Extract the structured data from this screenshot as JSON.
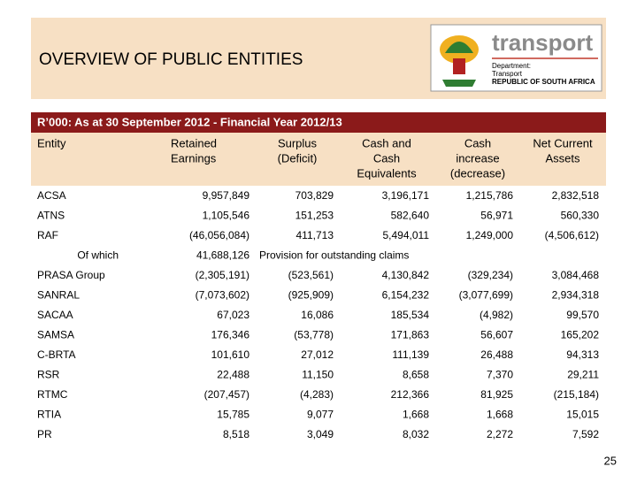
{
  "header": {
    "title": "OVERVIEW OF PUBLIC ENTITIES",
    "logo": {
      "name": "transport",
      "line1": "Department:",
      "line2": "Transport",
      "line3": "REPUBLIC OF SOUTH AFRICA"
    }
  },
  "banner": "R’000: As at 30 September 2012  - Financial Year 2012/13",
  "table": {
    "columns": [
      [
        "Entity"
      ],
      [
        "Retained",
        "Earnings"
      ],
      [
        "Surplus",
        "(Deficit)"
      ],
      [
        "Cash and",
        "Cash",
        "Equivalents"
      ],
      [
        "Cash",
        "increase",
        "(decrease)"
      ],
      [
        "Net Current",
        "Assets"
      ]
    ],
    "rows": [
      [
        "ACSA",
        "9,957,849",
        "703,829",
        "3,196,171",
        "1,215,786",
        "2,832,518"
      ],
      [
        "ATNS",
        "1,105,546",
        "151,253",
        "582,640",
        "56,971",
        "560,330"
      ],
      [
        "RAF",
        "(46,056,084)",
        "411,713",
        "5,494,011",
        "1,249,000",
        "(4,506,612)"
      ],
      [
        "Of which",
        "41,688,126",
        "Provision for outstanding claims"
      ],
      [
        "PRASA Group",
        "(2,305,191)",
        "(523,561)",
        "4,130,842",
        "(329,234)",
        "3,084,468"
      ],
      [
        "SANRAL",
        "(7,073,602)",
        "(925,909)",
        "6,154,232",
        "(3,077,699)",
        "2,934,318"
      ],
      [
        "SACAA",
        "67,023",
        "16,086",
        "185,534",
        "(4,982)",
        "99,570"
      ],
      [
        "SAMSA",
        "176,346",
        "(53,778)",
        "171,863",
        "56,607",
        "165,202"
      ],
      [
        "C-BRTA",
        "101,610",
        "27,012",
        "111,139",
        "26,488",
        "94,313"
      ],
      [
        "RSR",
        "22,488",
        "11,150",
        "8,658",
        "7,370",
        "29,211"
      ],
      [
        "RTMC",
        "(207,457)",
        "(4,283)",
        "212,366",
        "81,925",
        "(215,184)"
      ],
      [
        "RTIA",
        "15,785",
        "9,077",
        "1,668",
        "1,668",
        "15,015"
      ],
      [
        "PR",
        "8,518",
        "3,049",
        "8,032",
        "2,272",
        "7,592"
      ]
    ]
  },
  "page_number": "25"
}
